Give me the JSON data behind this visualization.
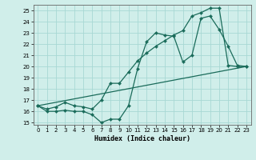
{
  "xlabel": "Humidex (Indice chaleur)",
  "background_color": "#d0eeea",
  "grid_color": "#a8d8d4",
  "line_color": "#1a6b5a",
  "xlim": [
    -0.5,
    23.5
  ],
  "ylim": [
    14.8,
    25.5
  ],
  "xticks": [
    0,
    1,
    2,
    3,
    4,
    5,
    6,
    7,
    8,
    9,
    10,
    11,
    12,
    13,
    14,
    15,
    16,
    17,
    18,
    19,
    20,
    21,
    22,
    23
  ],
  "yticks": [
    15,
    16,
    17,
    18,
    19,
    20,
    21,
    22,
    23,
    24,
    25
  ],
  "line1_x": [
    0,
    1,
    2,
    3,
    4,
    5,
    6,
    7,
    8,
    9,
    10,
    11,
    12,
    13,
    14,
    15,
    16,
    17,
    18,
    19,
    20,
    21,
    22,
    23
  ],
  "line1_y": [
    16.5,
    16.0,
    16.0,
    16.1,
    16.0,
    16.0,
    15.7,
    15.0,
    15.3,
    15.3,
    16.5,
    19.8,
    22.2,
    23.0,
    22.8,
    22.7,
    20.4,
    21.0,
    24.3,
    24.5,
    23.3,
    21.8,
    20.1,
    20.0
  ],
  "line2_x": [
    0,
    1,
    2,
    3,
    4,
    5,
    6,
    7,
    8,
    9,
    10,
    11,
    12,
    13,
    14,
    15,
    16,
    17,
    18,
    19,
    20,
    21,
    22,
    23
  ],
  "line2_y": [
    16.5,
    16.2,
    16.4,
    16.8,
    16.5,
    16.4,
    16.2,
    17.0,
    18.5,
    18.5,
    19.5,
    20.5,
    21.2,
    21.8,
    22.3,
    22.8,
    23.2,
    24.5,
    24.8,
    25.2,
    25.2,
    20.1,
    20.0,
    20.0
  ],
  "line3_x": [
    0,
    23
  ],
  "line3_y": [
    16.5,
    20.0
  ]
}
